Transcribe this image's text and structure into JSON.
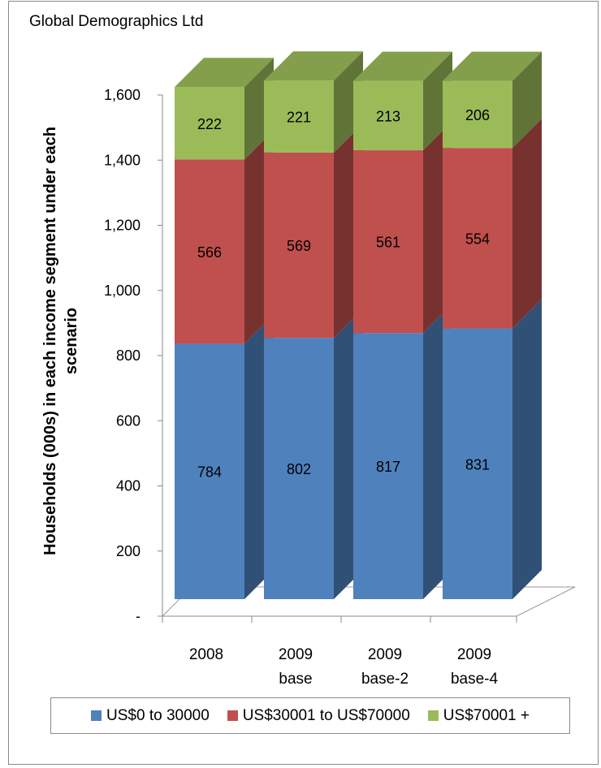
{
  "header": {
    "title": "Global Demographics Ltd"
  },
  "chart_data": {
    "type": "bar",
    "stacked": true,
    "three_d": true,
    "ylabel": "Households (000s) in each income segment under each scenario",
    "ylabel_lines": [
      "Households (000s) in each income segment under each",
      "scenario"
    ],
    "ylim": [
      0,
      1600
    ],
    "yticks": [
      0,
      200,
      400,
      600,
      800,
      1000,
      1200,
      1400,
      1600
    ],
    "ytick_labels": [
      "-",
      "200",
      "400",
      "600",
      "800",
      "1,000",
      "1,200",
      "1,400",
      "1,600"
    ],
    "categories": [
      [
        "2008"
      ],
      [
        "2009",
        "base"
      ],
      [
        "2009",
        "base-2"
      ],
      [
        "2009",
        "base-4"
      ]
    ],
    "series": [
      {
        "name": "US$0 to 30000",
        "values": [
          784,
          802,
          817,
          831
        ],
        "color": "#4f81bd"
      },
      {
        "name": "US$30001 to US$70000",
        "values": [
          566,
          569,
          561,
          554
        ],
        "color": "#c0504d"
      },
      {
        "name": "US$70001 +",
        "values": [
          222,
          221,
          213,
          206
        ],
        "color": "#9bbb59"
      }
    ],
    "legend_position": "bottom",
    "grid": false
  }
}
